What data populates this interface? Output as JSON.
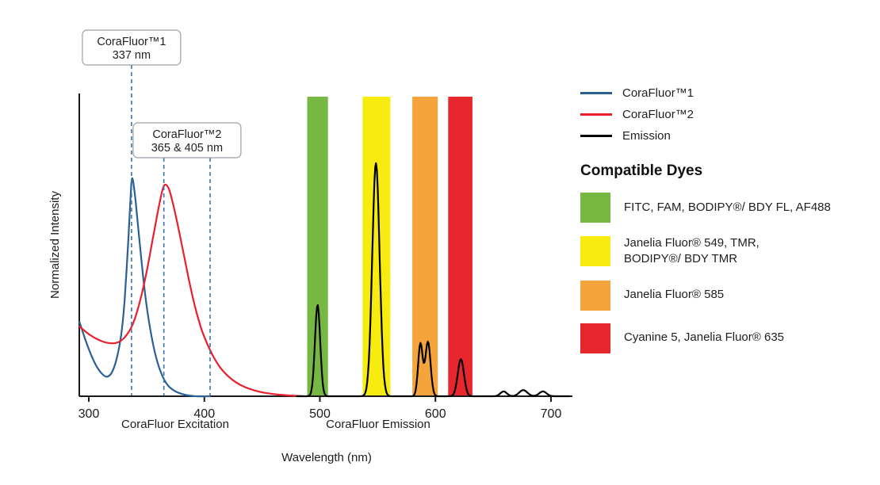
{
  "figure": {
    "y_axis_label": "Normalized Intensity",
    "x_axis_label": "Wavelength (nm)",
    "x_section_labels": {
      "excitation": "CoraFluor Excitation",
      "emission": "CoraFluor Emission"
    },
    "marker_line_color": "#3C78AC",
    "callouts": [
      {
        "title": "CoraFluor™1",
        "value": "337 nm",
        "lines_nm": [
          337
        ]
      },
      {
        "title": "CoraFluor™2",
        "value": "365 & 405 nm",
        "lines_nm": [
          365,
          405
        ]
      }
    ]
  },
  "legend": {
    "series": [
      {
        "label": "CoraFluor™1",
        "color": "#2A6095"
      },
      {
        "label": "CoraFluor™2",
        "color": "#E8202E"
      },
      {
        "label": "Emission",
        "color": "#000000"
      }
    ],
    "dyes_heading": "Compatible Dyes",
    "dyes": [
      {
        "label": "FITC, FAM, BODIPY®/ BDY FL, AF488",
        "color": "#77B843"
      },
      {
        "label": "Janelia Fluor® 549, TMR,\nBODIPY®/ BDY TMR",
        "color": "#F7EB0F"
      },
      {
        "label": "Janelia Fluor® 585",
        "color": "#F5A43B"
      },
      {
        "label": "Cyanine 5, Janelia Fluor® 635",
        "color": "#E8262D"
      }
    ]
  },
  "chart_data": {
    "type": "line",
    "title": "",
    "xlabel": "Wavelength (nm)",
    "ylabel": "Normalized Intensity",
    "x_ticks": [
      300,
      400,
      500,
      600,
      700
    ],
    "xlim": [
      292,
      717
    ],
    "ylim": [
      0,
      1.1
    ],
    "grid": false,
    "legend_position": "right",
    "series": [
      {
        "name": "CoraFluor™1",
        "role": "excitation",
        "color": "#2A6095",
        "points": [
          [
            292,
            0.34
          ],
          [
            297,
            0.26
          ],
          [
            302,
            0.19
          ],
          [
            307,
            0.135
          ],
          [
            312,
            0.1
          ],
          [
            316,
            0.09
          ],
          [
            320,
            0.11
          ],
          [
            324,
            0.17
          ],
          [
            328,
            0.28
          ],
          [
            331,
            0.44
          ],
          [
            334,
            0.7
          ],
          [
            336,
            0.9
          ],
          [
            337.5,
            1.0
          ],
          [
            340,
            0.92
          ],
          [
            343,
            0.76
          ],
          [
            347,
            0.55
          ],
          [
            351,
            0.38
          ],
          [
            356,
            0.23
          ],
          [
            361,
            0.13
          ],
          [
            367,
            0.06
          ],
          [
            374,
            0.025
          ],
          [
            383,
            0.007
          ],
          [
            393,
            0.0
          ],
          [
            405,
            0.0
          ]
        ]
      },
      {
        "name": "CoraFluor™2",
        "role": "excitation",
        "color": "#E8202E",
        "points": [
          [
            292,
            0.32
          ],
          [
            300,
            0.285
          ],
          [
            308,
            0.26
          ],
          [
            316,
            0.245
          ],
          [
            324,
            0.245
          ],
          [
            331,
            0.27
          ],
          [
            338,
            0.33
          ],
          [
            344,
            0.43
          ],
          [
            350,
            0.57
          ],
          [
            356,
            0.74
          ],
          [
            361,
            0.88
          ],
          [
            365,
            0.965
          ],
          [
            369,
            0.955
          ],
          [
            373,
            0.88
          ],
          [
            378,
            0.76
          ],
          [
            383,
            0.63
          ],
          [
            388,
            0.5
          ],
          [
            393,
            0.39
          ],
          [
            398,
            0.3
          ],
          [
            403,
            0.235
          ],
          [
            408,
            0.18
          ],
          [
            414,
            0.13
          ],
          [
            420,
            0.095
          ],
          [
            427,
            0.065
          ],
          [
            435,
            0.042
          ],
          [
            444,
            0.026
          ],
          [
            454,
            0.014
          ],
          [
            465,
            0.007
          ],
          [
            478,
            0.002
          ],
          [
            486,
            0.0
          ]
        ]
      },
      {
        "name": "Emission",
        "role": "emission",
        "color": "#000000",
        "peaks": [
          {
            "center": 498,
            "height": 0.42,
            "width": 3.2
          },
          {
            "center": 548.5,
            "height": 1.07,
            "width": 4.5
          },
          {
            "center": 587,
            "height": 0.24,
            "width": 2.8
          },
          {
            "center": 593.5,
            "height": 0.25,
            "width": 3.2
          },
          {
            "center": 622,
            "height": 0.17,
            "width": 3.8
          },
          {
            "center": 659,
            "height": 0.022,
            "width": 4
          },
          {
            "center": 676,
            "height": 0.028,
            "width": 5
          },
          {
            "center": 693,
            "height": 0.022,
            "width": 4.5
          }
        ]
      }
    ],
    "annotations": [
      {
        "text": "CoraFluor™1 337 nm",
        "lines_nm": [
          337
        ]
      },
      {
        "text": "CoraFluor™2 365 & 405 nm",
        "lines_nm": [
          365,
          405
        ]
      }
    ],
    "filter_bands": [
      {
        "label": "FITC, FAM, BODIPY®/ BDY FL, AF488",
        "from_nm": 489,
        "to_nm": 507,
        "color": "#77B843"
      },
      {
        "label": "Janelia Fluor® 549, TMR, BODIPY®/ BDY TMR",
        "from_nm": 537,
        "to_nm": 561,
        "color": "#F7EB0F"
      },
      {
        "label": "Janelia Fluor® 585",
        "from_nm": 580,
        "to_nm": 602,
        "color": "#F5A43B"
      },
      {
        "label": "Cyanine 5, Janelia Fluor® 635",
        "from_nm": 611,
        "to_nm": 632,
        "color": "#E8262D"
      }
    ]
  }
}
